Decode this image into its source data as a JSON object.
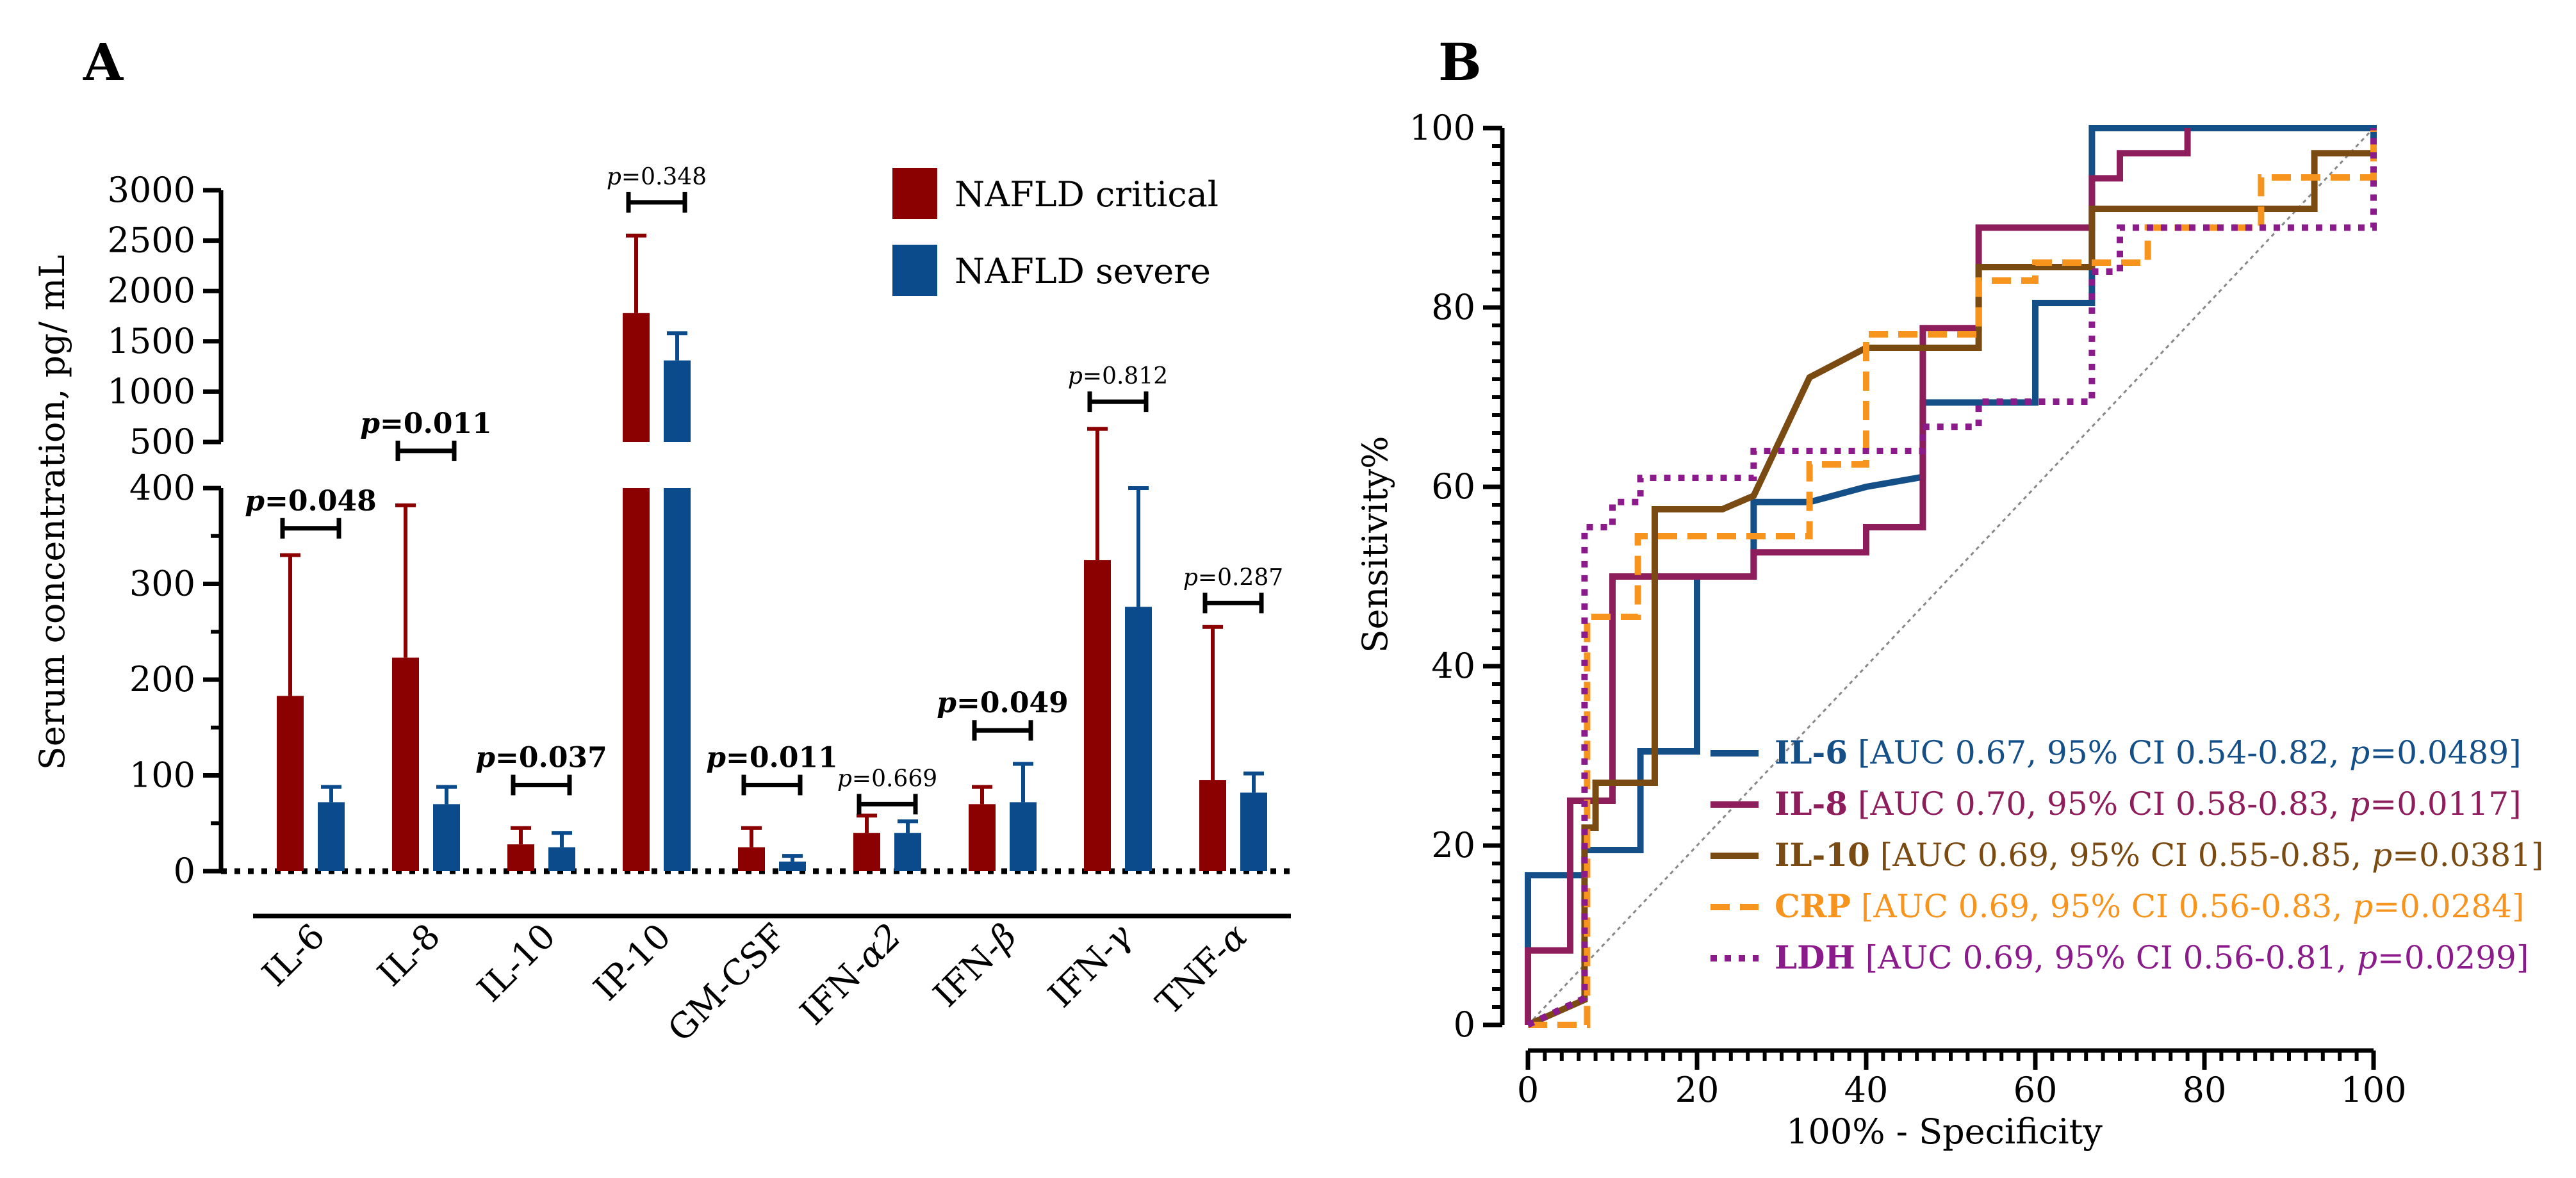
{
  "chart_data": [
    {
      "panel": "A",
      "type": "bar",
      "ylabel": "Serum concentration, pg/ mL",
      "y_lower_range": [
        0,
        400
      ],
      "y_lower_ticks": [
        "0",
        "100",
        "200",
        "300",
        "400"
      ],
      "y_upper_range": [
        500,
        3000
      ],
      "y_upper_ticks": [
        "500",
        "1000",
        "1500",
        "2000",
        "2500",
        "3000"
      ],
      "categories": [
        "IL-6",
        "IL-8",
        "IL-10",
        "IP-10",
        "GM-CSF",
        "IFN-α2",
        "IFN-β",
        "IFN-γ",
        "TNF-α"
      ],
      "category_labels": [
        {
          "text": "IL-6",
          "italic": ""
        },
        {
          "text": "IL-8",
          "italic": ""
        },
        {
          "text": "IL-10",
          "italic": ""
        },
        {
          "text": "IP-10",
          "italic": ""
        },
        {
          "text": "GM-CSF",
          "italic": ""
        },
        {
          "text": "IFN-",
          "italic": "α2"
        },
        {
          "text": "IFN-",
          "italic": "β"
        },
        {
          "text": "IFN-",
          "italic": "γ"
        },
        {
          "text": "TNF-",
          "italic": "α"
        }
      ],
      "series": [
        {
          "name": "NAFLD critical",
          "color": "#8b0000",
          "values": [
            183,
            223,
            28,
            1780,
            25,
            40,
            70,
            325,
            95
          ],
          "errors": [
            330,
            382,
            45,
            2550,
            45,
            58,
            88,
            630,
            255
          ]
        },
        {
          "name": "NAFLD severe",
          "color": "#0b4b8c",
          "values": [
            72,
            70,
            25,
            1310,
            10,
            40,
            72,
            276,
            82
          ],
          "errors": [
            88,
            88,
            40,
            1580,
            16,
            52,
            112,
            400,
            102
          ]
        }
      ],
      "p_values": [
        {
          "text": "0.048",
          "bold": true,
          "y": 358
        },
        {
          "text": "0.011",
          "bold": true,
          "y": 412
        },
        {
          "text": "0.037",
          "bold": true,
          "y": 90
        },
        {
          "text": "0.348",
          "bold": false,
          "y": 2880
        },
        {
          "text": "0.011",
          "bold": true,
          "y": 90
        },
        {
          "text": "0.669",
          "bold": false,
          "y": 70
        },
        {
          "text": "0.049",
          "bold": true,
          "y": 147
        },
        {
          "text": "0.812",
          "bold": false,
          "y": 900
        },
        {
          "text": "0.287",
          "bold": false,
          "y": 280
        }
      ],
      "p_prefix": "p",
      "p_eq": "=",
      "legend": [
        {
          "label": "NAFLD critical",
          "color": "#8b0000"
        },
        {
          "label": "NAFLD severe",
          "color": "#0b4b8c"
        }
      ]
    },
    {
      "panel": "B",
      "type": "line",
      "xlabel": "100% - Specificity",
      "ylabel": "Sensitivity%",
      "xlim": [
        0,
        100
      ],
      "ylim": [
        0,
        100
      ],
      "x_ticks": [
        "0",
        "20",
        "40",
        "60",
        "80",
        "100"
      ],
      "y_ticks": [
        "0",
        "20",
        "40",
        "60",
        "80",
        "100"
      ],
      "series": [
        {
          "name": "IL-6",
          "color": "#154f88",
          "dash": "solid",
          "legend_rest": " [AUC 0.67, 95% CI 0.54-0.82, ",
          "p_value": "0.0489",
          "x": [
            0,
            0,
            6.7,
            6.7,
            13.3,
            13.3,
            20,
            20,
            26.7,
            26.7,
            33.3,
            33.3,
            40,
            40,
            46.7,
            46.7,
            53.3,
            53.3,
            60,
            60,
            66.7,
            66.7,
            100,
            100
          ],
          "y": [
            0,
            16.7,
            16.7,
            19.5,
            19.5,
            30.5,
            30.5,
            50,
            50,
            58.3,
            58.3,
            58.3,
            60,
            60,
            61.1,
            69.4,
            69.4,
            69.4,
            69.4,
            80.5,
            80.5,
            100,
            100,
            97
          ]
        },
        {
          "name": "IL-8",
          "color": "#8e1d5b",
          "dash": "solid",
          "legend_rest": " [AUC 0.70, 95% CI 0.58-0.83, ",
          "p_value": "0.0117",
          "x": [
            0,
            0,
            5,
            5,
            10,
            10,
            20,
            20,
            26.7,
            26.7,
            40,
            40,
            46.7,
            46.7,
            53.3,
            53.3,
            66.7,
            66.7,
            70,
            70,
            78,
            78
          ],
          "y": [
            0,
            8.3,
            8.3,
            25,
            25,
            50,
            50,
            50,
            50,
            52.7,
            52.7,
            55.5,
            55.5,
            77.7,
            77.7,
            88.9,
            88.9,
            94.4,
            94.4,
            97.2,
            97.2,
            100
          ]
        },
        {
          "name": "IL-10",
          "color": "#7a4a13",
          "dash": "solid",
          "legend_rest": " [AUC 0.69, 95% CI 0.55-0.85, ",
          "p_value": "0.0381",
          "x": [
            0,
            6.7,
            6.7,
            8,
            8,
            15,
            15,
            23,
            23,
            26.7,
            26.7,
            33.3,
            33.3,
            40,
            40,
            53.3,
            53.3,
            66.7,
            66.7,
            93,
            93,
            100
          ],
          "y": [
            0,
            2.8,
            22,
            22,
            27,
            27,
            57.5,
            57.5,
            57.5,
            59,
            59,
            72.2,
            72.2,
            75.5,
            75.5,
            75.5,
            84.5,
            84.5,
            91,
            91,
            97.2,
            97.2
          ]
        },
        {
          "name": "CRP",
          "color": "#f7941d",
          "dash": "dashed",
          "legend_rest": " [AUC 0.69, 95% CI 0.56-0.83, ",
          "p_value": "0.0284",
          "x": [
            0,
            7,
            7,
            13,
            13,
            20,
            20,
            33.3,
            33.3,
            40,
            40,
            53.3,
            53.3,
            60,
            60,
            73.3,
            73.3,
            86.7,
            86.7,
            100,
            100
          ],
          "y": [
            0,
            0,
            45.5,
            45.5,
            54.5,
            54.5,
            54.5,
            54.5,
            62.5,
            62.5,
            77,
            77,
            83,
            83,
            85,
            85,
            88.9,
            88.9,
            94.5,
            94.5,
            100
          ]
        },
        {
          "name": "LDH",
          "color": "#8b1a8b",
          "dash": "dotted",
          "legend_rest": " [AUC 0.69, 95% CI 0.56-0.81, ",
          "p_value": "0.0299",
          "x": [
            0,
            6.7,
            6.7,
            10,
            10,
            13.3,
            13.3,
            26.7,
            26.7,
            46.7,
            46.7,
            53.3,
            53.3,
            66.7,
            66.7,
            70,
            70,
            93.3,
            93.3,
            100,
            100
          ],
          "y": [
            0,
            3,
            55.5,
            55.5,
            58.3,
            58.3,
            61,
            61,
            64,
            64,
            66.7,
            66.7,
            69.5,
            69.5,
            84,
            84,
            88.9,
            88.9,
            88.9,
            88.9,
            100
          ]
        }
      ],
      "p_prefix": "p",
      "p_eq": "=",
      "legend_close": "]"
    }
  ],
  "panel_letters": [
    "A",
    "B"
  ]
}
